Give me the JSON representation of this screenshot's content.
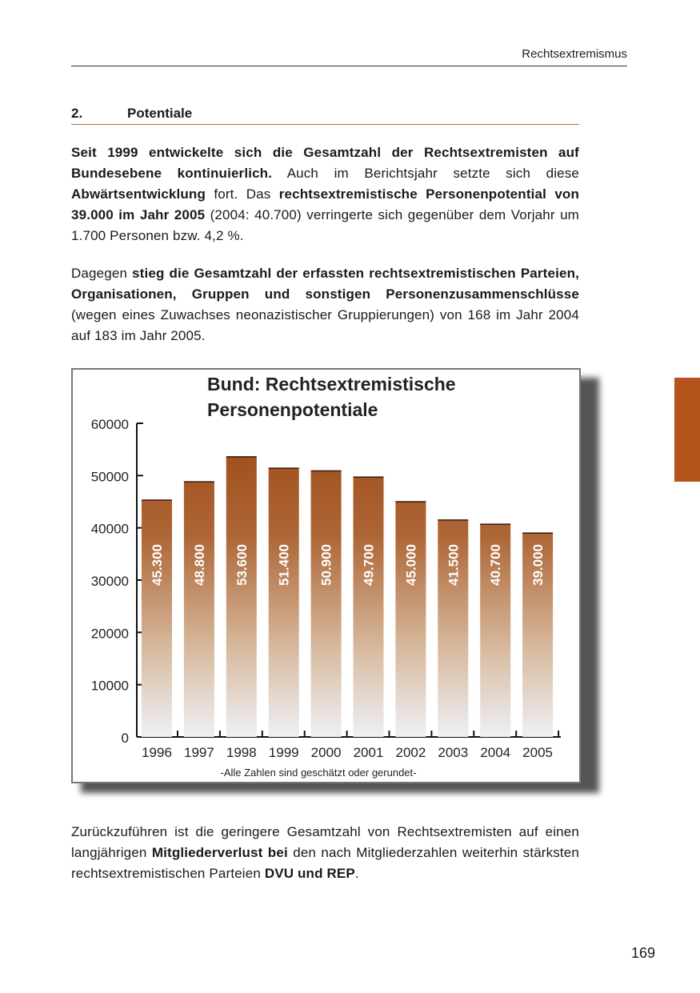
{
  "header": {
    "running_title": "Rechtsextremismus"
  },
  "section": {
    "number": "2.",
    "title": "Potentiale"
  },
  "paragraphs": [
    [
      {
        "text": "Seit 1999 entwickelte sich die Gesamtzahl der Rechtsextremisten auf Bundesebene kontinuierlich.",
        "bold": true
      },
      {
        "text": " Auch im Berichtsjahr setzte sich diese ",
        "bold": false
      },
      {
        "text": "Abwärtsentwicklung",
        "bold": true
      },
      {
        "text": " fort. Das ",
        "bold": false
      },
      {
        "text": "rechtsextremistische Personenpotential von 39.000 im Jahr 2005",
        "bold": true
      },
      {
        "text": " (2004: 40.700) verringerte sich gegenüber dem Vorjahr um 1.700 Personen bzw. 4,2 %.",
        "bold": false
      }
    ],
    [
      {
        "text": "Dagegen ",
        "bold": false
      },
      {
        "text": "stieg die Gesamtzahl der erfassten rechtsextremistischen Parteien, Organisationen, Gruppen und sonstigen Personenzusammen­schlüsse",
        "bold": true
      },
      {
        "text": " (wegen eines Zuwachses neonazistischer Gruppierungen) von 168 im Jahr 2004 auf 183 im Jahr 2005.",
        "bold": false
      }
    ],
    [
      {
        "text": "Zurückzuführen ist die geringere Gesamtzahl von Rechtsextremisten auf einen langjährigen ",
        "bold": false
      },
      {
        "text": "Mitgliederverlust bei",
        "bold": true
      },
      {
        "text": " den nach Mitgliederzahlen weiterhin stärksten rechtsextremistischen Parteien ",
        "bold": false
      },
      {
        "text": "DVU und REP",
        "bold": true
      },
      {
        "text": ".",
        "bold": false
      }
    ]
  ],
  "chart_data": {
    "type": "bar",
    "title": "Bund: Rechtsextremistische Personenpotentiale",
    "title_lines": [
      "Bund: Rechtsextremistische",
      "Personenpotentiale"
    ],
    "categories": [
      "1996",
      "1997",
      "1998",
      "1999",
      "2000",
      "2001",
      "2002",
      "2003",
      "2004",
      "2005"
    ],
    "values": [
      45300,
      48800,
      53600,
      51400,
      50900,
      49700,
      45000,
      41500,
      40700,
      39000
    ],
    "data_labels": [
      "45.300",
      "48.800",
      "53.600",
      "51.400",
      "50.900",
      "49.700",
      "45.000",
      "41.500",
      "40.700",
      "39.000"
    ],
    "ylim": [
      0,
      60000
    ],
    "yticks": [
      "0",
      "10000",
      "20000",
      "30000",
      "40000",
      "50000",
      "60000"
    ],
    "note": "-Alle Zahlen sind geschätzt oder gerundet-",
    "grid": false,
    "legend": "none",
    "colors": {
      "bar_top": "#a14f1e",
      "bar_bottom": "#eef0f5"
    }
  },
  "side_tab": {
    "color": "#b5531d"
  },
  "footer": {
    "page_number": "169"
  }
}
